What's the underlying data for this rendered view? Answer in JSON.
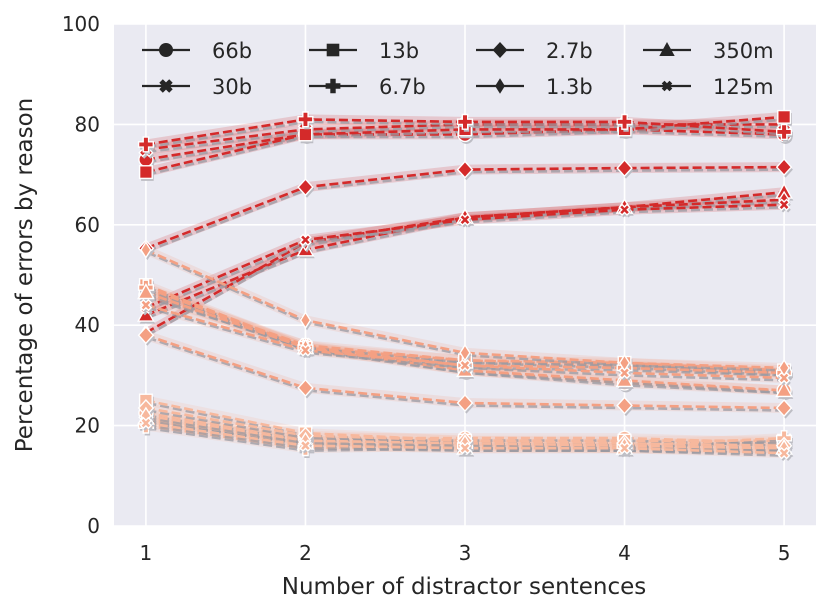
{
  "chart_data": {
    "type": "line",
    "title": "",
    "xlabel": "Number of distractor sentences",
    "ylabel": "Percentage of errors by reason",
    "x": [
      1,
      2,
      3,
      4,
      5
    ],
    "xticks": [
      "1",
      "2",
      "3",
      "4",
      "5"
    ],
    "yticks": [
      "0",
      "20",
      "40",
      "60",
      "80",
      "100"
    ],
    "xlim": [
      0.8,
      5.2
    ],
    "ylim": [
      0,
      100
    ],
    "grid": true,
    "legend_position": "top",
    "colors": {
      "plot_bg": "#eaeaf2",
      "grid": "#ffffff",
      "legend_marker": "#262626"
    },
    "legend": [
      {
        "name": "66b",
        "marker": "circle"
      },
      {
        "name": "13b",
        "marker": "square"
      },
      {
        "name": "2.7b",
        "marker": "diamond"
      },
      {
        "name": "350m",
        "marker": "triangle"
      },
      {
        "name": "30b",
        "marker": "x"
      },
      {
        "name": "6.7b",
        "marker": "plus"
      },
      {
        "name": "1.3b",
        "marker": "thin-diamond"
      },
      {
        "name": "125m",
        "marker": "x-small"
      }
    ],
    "series": [
      {
        "model": "66b",
        "group": "A",
        "color": "#d42a2a",
        "marker": "circle",
        "values": [
          73,
          78,
          78,
          79,
          78
        ]
      },
      {
        "model": "30b",
        "group": "A",
        "color": "#d42a2a",
        "marker": "x",
        "values": [
          75,
          79,
          80,
          80,
          80
        ]
      },
      {
        "model": "13b",
        "group": "A",
        "color": "#d42a2a",
        "marker": "square",
        "values": [
          70.5,
          78,
          79,
          79,
          81.5
        ]
      },
      {
        "model": "6.7b",
        "group": "A",
        "color": "#d42a2a",
        "marker": "plus",
        "values": [
          76,
          81,
          80.5,
          80.5,
          78.5
        ]
      },
      {
        "model": "2.7b",
        "group": "A",
        "color": "#d42a2a",
        "marker": "diamond",
        "values": [
          55.3,
          67.5,
          71,
          71.3,
          71.5
        ]
      },
      {
        "model": "350m",
        "group": "A",
        "color": "#d42a2a",
        "marker": "triangle",
        "values": [
          42,
          55,
          61.5,
          63.5,
          66.5
        ]
      },
      {
        "model": "1.3b",
        "group": "A",
        "color": "#d42a2a",
        "marker": "thin-diamond",
        "values": [
          38.5,
          56.5,
          61.5,
          63.5,
          65
        ]
      },
      {
        "model": "125m",
        "group": "A",
        "color": "#d42a2a",
        "marker": "x-small",
        "values": [
          43.5,
          57,
          61,
          63,
          64
        ]
      },
      {
        "model": "66b",
        "group": "B",
        "color": "#f4a083",
        "marker": "circle",
        "values": [
          46,
          36,
          31,
          28.5,
          27
        ]
      },
      {
        "model": "30b",
        "group": "B",
        "color": "#f4a083",
        "marker": "x",
        "values": [
          47,
          36,
          33,
          32,
          30.5
        ]
      },
      {
        "model": "13b",
        "group": "B",
        "color": "#f4a083",
        "marker": "square",
        "values": [
          48,
          35.5,
          33,
          32.5,
          31
        ]
      },
      {
        "model": "6.7b",
        "group": "B",
        "color": "#f4a083",
        "marker": "plus",
        "values": [
          47.5,
          35.5,
          32,
          31.5,
          30.5
        ]
      },
      {
        "model": "2.7b",
        "group": "B",
        "color": "#f4a083",
        "marker": "diamond",
        "values": [
          38,
          27.5,
          24.5,
          24,
          23.5
        ]
      },
      {
        "model": "350m",
        "group": "B",
        "color": "#f4a083",
        "marker": "triangle",
        "values": [
          46.5,
          35.5,
          31,
          29,
          27
        ]
      },
      {
        "model": "1.3b",
        "group": "B",
        "color": "#f4a083",
        "marker": "thin-diamond",
        "values": [
          55,
          41,
          34.5,
          32.5,
          31.5
        ]
      },
      {
        "model": "125m",
        "group": "B",
        "color": "#f4a083",
        "marker": "x-small",
        "values": [
          44,
          35,
          32,
          30.5,
          29.5
        ]
      },
      {
        "model": "66b",
        "group": "C",
        "color": "#f7b89d",
        "marker": "circle",
        "values": [
          22.5,
          17.5,
          17.5,
          17.5,
          16.5
        ]
      },
      {
        "model": "30b",
        "group": "C",
        "color": "#f7b89d",
        "marker": "x",
        "values": [
          21,
          17,
          16,
          15.5,
          15
        ]
      },
      {
        "model": "13b",
        "group": "C",
        "color": "#f7b89d",
        "marker": "square",
        "values": [
          25,
          18.5,
          17,
          17,
          17
        ]
      },
      {
        "model": "6.7b",
        "group": "C",
        "color": "#f7b89d",
        "marker": "plus",
        "values": [
          20,
          15.5,
          16,
          16,
          17.5
        ]
      },
      {
        "model": "2.7b",
        "group": "C",
        "color": "#f7b89d",
        "marker": "diamond",
        "values": [
          23.5,
          18,
          17,
          16.5,
          16
        ]
      },
      {
        "model": "350m",
        "group": "C",
        "color": "#f7b89d",
        "marker": "triangle",
        "values": [
          21.5,
          16.5,
          15.5,
          15.5,
          15.5
        ]
      },
      {
        "model": "1.3b",
        "group": "C",
        "color": "#f7b89d",
        "marker": "thin-diamond",
        "values": [
          22,
          17,
          16.5,
          16,
          15.5
        ]
      },
      {
        "model": "125m",
        "group": "C",
        "color": "#f7b89d",
        "marker": "x-small",
        "values": [
          20.5,
          16,
          15.5,
          15.5,
          14.5
        ]
      }
    ]
  }
}
